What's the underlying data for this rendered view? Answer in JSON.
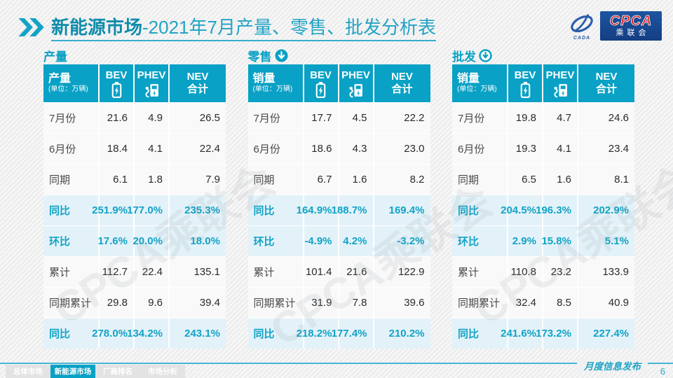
{
  "title": {
    "bold": "新能源市场",
    "rest": "-2021年7月产量、零售、批发分析表"
  },
  "logo": {
    "cpca": "CPCA",
    "sub": "乘联会",
    "swoosh_caption": "CADA"
  },
  "watermark": "CPCA乘联会",
  "unit": "(单位：万辆)",
  "columns": {
    "bev": "BEV",
    "phev": "PHEV",
    "nev_line1": "NEV",
    "nev_line2": "合计"
  },
  "icons": {
    "title_marker": "double-chevron-icon",
    "bev": "battery-icon",
    "phev": "charging-station-icon",
    "section_production": "none",
    "section_retail": "down-arrow-filled",
    "section_wholesale": "down-arrow-outline"
  },
  "colors": {
    "accent": "#09a1c5",
    "highlight_bg": "#e3f2f9",
    "title_text": "#22a3c5",
    "logo_blue": "#1a4c98",
    "logo_red": "#cc2229"
  },
  "tables": [
    {
      "section": "产量",
      "icon": "none",
      "first_col": "产量",
      "rows": [
        {
          "label": "7月份",
          "bev": "21.6",
          "phev": "4.9",
          "nev": "26.5",
          "hl": false
        },
        {
          "label": "6月份",
          "bev": "18.4",
          "phev": "4.1",
          "nev": "22.4",
          "hl": false
        },
        {
          "label": "同期",
          "bev": "6.1",
          "phev": "1.8",
          "nev": "7.9",
          "hl": false
        },
        {
          "label": "同比",
          "bev": "251.9%",
          "phev": "177.0%",
          "nev": "235.3%",
          "hl": true
        },
        {
          "label": "环比",
          "bev": "17.6%",
          "phev": "20.0%",
          "nev": "18.0%",
          "hl": true
        },
        {
          "label": "累计",
          "bev": "112.7",
          "phev": "22.4",
          "nev": "135.1",
          "hl": false
        },
        {
          "label": "同期累计",
          "bev": "29.8",
          "phev": "9.6",
          "nev": "39.4",
          "hl": false
        },
        {
          "label": "同比",
          "bev": "278.0%",
          "phev": "134.2%",
          "nev": "243.1%",
          "hl": true
        }
      ]
    },
    {
      "section": "零售",
      "icon": "down-filled",
      "first_col": "销量",
      "rows": [
        {
          "label": "7月份",
          "bev": "17.7",
          "phev": "4.5",
          "nev": "22.2",
          "hl": false
        },
        {
          "label": "6月份",
          "bev": "18.6",
          "phev": "4.3",
          "nev": "23.0",
          "hl": false
        },
        {
          "label": "同期",
          "bev": "6.7",
          "phev": "1.6",
          "nev": "8.2",
          "hl": false
        },
        {
          "label": "同比",
          "bev": "164.9%",
          "phev": "188.7%",
          "nev": "169.4%",
          "hl": true
        },
        {
          "label": "环比",
          "bev": "-4.9%",
          "phev": "4.2%",
          "nev": "-3.2%",
          "hl": true
        },
        {
          "label": "累计",
          "bev": "101.4",
          "phev": "21.6",
          "nev": "122.9",
          "hl": false
        },
        {
          "label": "同期累计",
          "bev": "31.9",
          "phev": "7.8",
          "nev": "39.6",
          "hl": false
        },
        {
          "label": "同比",
          "bev": "218.2%",
          "phev": "177.4%",
          "nev": "210.2%",
          "hl": true
        }
      ]
    },
    {
      "section": "批发",
      "icon": "down-outline",
      "first_col": "销量",
      "rows": [
        {
          "label": "7月份",
          "bev": "19.8",
          "phev": "4.7",
          "nev": "24.6",
          "hl": false
        },
        {
          "label": "6月份",
          "bev": "19.3",
          "phev": "4.1",
          "nev": "23.4",
          "hl": false
        },
        {
          "label": "同期",
          "bev": "6.5",
          "phev": "1.6",
          "nev": "8.1",
          "hl": false
        },
        {
          "label": "同比",
          "bev": "204.5%",
          "phev": "196.3%",
          "nev": "202.9%",
          "hl": true
        },
        {
          "label": "环比",
          "bev": "2.9%",
          "phev": "15.8%",
          "nev": "5.1%",
          "hl": true
        },
        {
          "label": "累计",
          "bev": "110.8",
          "phev": "23.2",
          "nev": "133.9",
          "hl": false
        },
        {
          "label": "同期累计",
          "bev": "32.4",
          "phev": "8.5",
          "nev": "40.9",
          "hl": false
        },
        {
          "label": "同比",
          "bev": "241.6%",
          "phev": "173.2%",
          "nev": "227.4%",
          "hl": true
        }
      ]
    }
  ],
  "footer": {
    "tabs": [
      {
        "label": "总体市场",
        "active": false
      },
      {
        "label": "新能源市场",
        "active": true
      },
      {
        "label": "厂商排名",
        "active": false
      },
      {
        "label": "市场分析",
        "active": false
      }
    ],
    "caption": "月度信息发布",
    "page": "6"
  }
}
